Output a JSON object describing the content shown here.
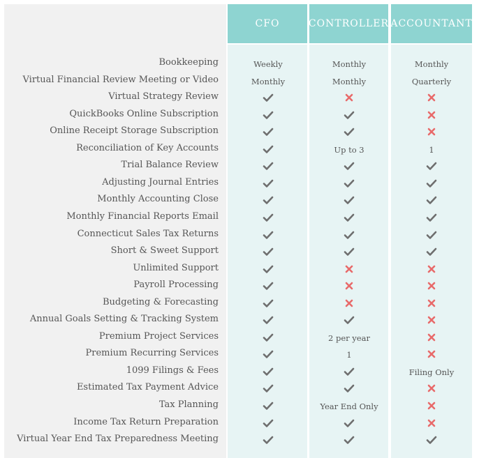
{
  "columns": [
    {
      "label": "CFO"
    },
    {
      "label": "CONTROLLER"
    },
    {
      "label": "ACCOUNTANT"
    }
  ],
  "rows": [
    {
      "label": "Bookkeeping",
      "values": [
        "Weekly",
        "Monthly",
        "Monthly"
      ]
    },
    {
      "label": "Virtual Financial Review Meeting or Video",
      "values": [
        "Monthly",
        "Monthly",
        "Quarterly"
      ]
    },
    {
      "label": "Virtual Strategy Review",
      "values": [
        "check",
        "cross",
        "cross"
      ]
    },
    {
      "label": "QuickBooks Online Subscription",
      "values": [
        "check",
        "check",
        "cross"
      ]
    },
    {
      "label": "Online Receipt Storage Subscription",
      "values": [
        "check",
        "check",
        "cross"
      ]
    },
    {
      "label": "Reconciliation of Key Accounts",
      "values": [
        "check",
        "Up to 3",
        "1"
      ]
    },
    {
      "label": "Trial Balance Review",
      "values": [
        "check",
        "check",
        "check"
      ]
    },
    {
      "label": "Adjusting Journal Entries",
      "values": [
        "check",
        "check",
        "check"
      ]
    },
    {
      "label": "Monthly Accounting Close",
      "values": [
        "check",
        "check",
        "check"
      ]
    },
    {
      "label": "Monthly Financial Reports Email",
      "values": [
        "check",
        "check",
        "check"
      ]
    },
    {
      "label": "Connecticut Sales Tax Returns",
      "values": [
        "check",
        "check",
        "check"
      ]
    },
    {
      "label": "Short & Sweet Support",
      "values": [
        "check",
        "check",
        "check"
      ]
    },
    {
      "label": "Unlimited Support",
      "values": [
        "check",
        "cross",
        "cross"
      ]
    },
    {
      "label": "Payroll Processing",
      "values": [
        "check",
        "cross",
        "cross"
      ]
    },
    {
      "label": "Budgeting & Forecasting",
      "values": [
        "check",
        "cross",
        "cross"
      ]
    },
    {
      "label": "Annual Goals Setting & Tracking System",
      "values": [
        "check",
        "check",
        "cross"
      ]
    },
    {
      "label": "Premium Project Services",
      "values": [
        "check",
        "2 per year",
        "cross"
      ]
    },
    {
      "label": "Premium Recurring Services",
      "values": [
        "check",
        "1",
        "cross"
      ]
    },
    {
      "label": "1099 Filings & Fees",
      "values": [
        "check",
        "check",
        "Filing Only"
      ]
    },
    {
      "label": "Estimated Tax Payment Advice",
      "values": [
        "check",
        "check",
        "cross"
      ]
    },
    {
      "label": "Tax Planning",
      "values": [
        "check",
        "Year End Only",
        "cross"
      ]
    },
    {
      "label": "Income Tax Return Preparation",
      "values": [
        "check",
        "check",
        "cross"
      ]
    },
    {
      "label": "Virtual Year End Tax Preparedness Meeting",
      "values": [
        "check",
        "check",
        "check"
      ]
    }
  ],
  "colors": {
    "header": "#8ed4d1",
    "column_body": "#e7f4f4",
    "label_bg": "#f1f1f1",
    "check": "#6e6e6e",
    "cross": "#e86a6a"
  },
  "icons": {
    "check": "check-icon",
    "cross": "cross-icon"
  }
}
